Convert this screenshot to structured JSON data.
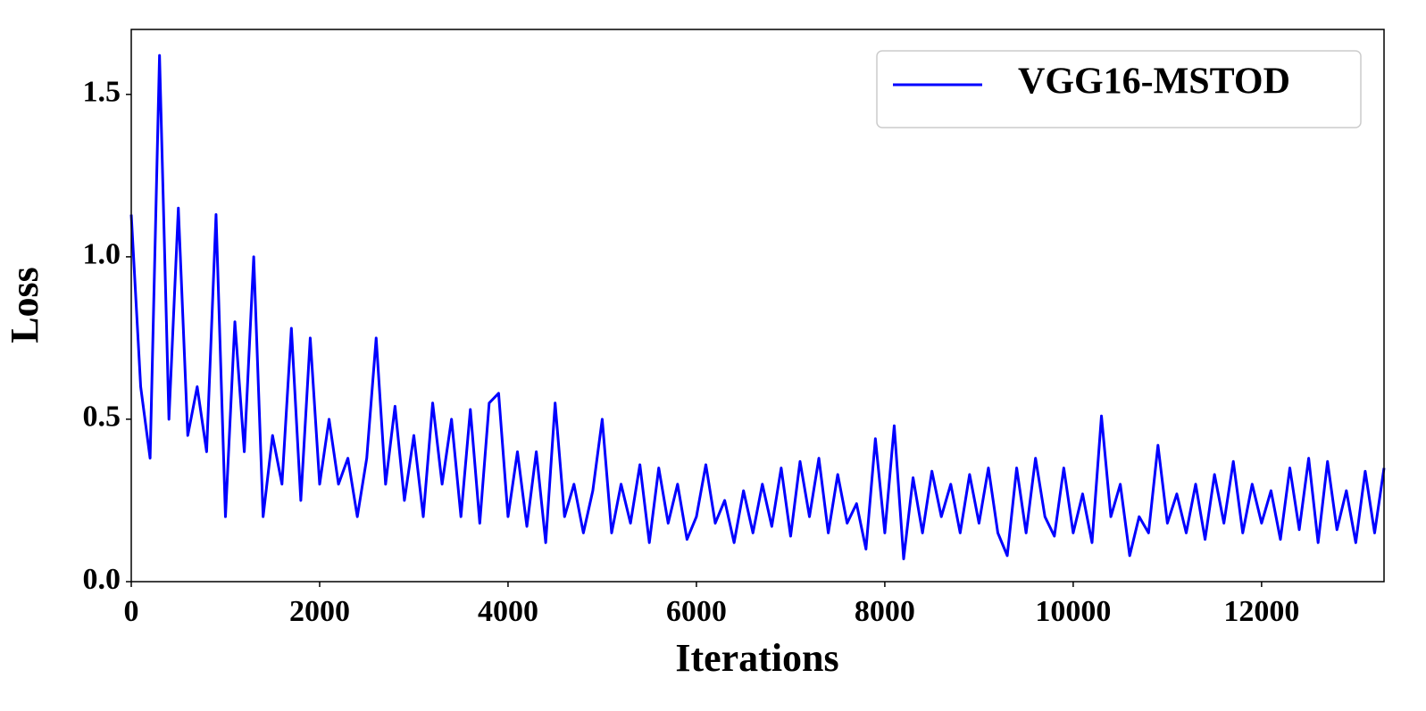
{
  "chart_data": {
    "type": "line",
    "xlabel": "Iterations",
    "ylabel": "Loss",
    "x": [
      0,
      100,
      200,
      300,
      400,
      500,
      600,
      700,
      800,
      900,
      1000,
      1100,
      1200,
      1300,
      1400,
      1500,
      1600,
      1700,
      1800,
      1900,
      2000,
      2100,
      2200,
      2300,
      2400,
      2500,
      2600,
      2700,
      2800,
      2900,
      3000,
      3100,
      3200,
      3300,
      3400,
      3500,
      3600,
      3700,
      3800,
      3900,
      4000,
      4100,
      4200,
      4300,
      4400,
      4500,
      4600,
      4700,
      4800,
      4900,
      5000,
      5100,
      5200,
      5300,
      5400,
      5500,
      5600,
      5700,
      5800,
      5900,
      6000,
      6100,
      6200,
      6300,
      6400,
      6500,
      6600,
      6700,
      6800,
      6900,
      7000,
      7100,
      7200,
      7300,
      7400,
      7500,
      7600,
      7700,
      7800,
      7900,
      8000,
      8100,
      8200,
      8300,
      8400,
      8500,
      8600,
      8700,
      8800,
      8900,
      9000,
      9100,
      9200,
      9300,
      9400,
      9500,
      9600,
      9700,
      9800,
      9900,
      10000,
      10100,
      10200,
      10300,
      10400,
      10500,
      10600,
      10700,
      10800,
      10900,
      11000,
      11100,
      11200,
      11300,
      11400,
      11500,
      11600,
      11700,
      11800,
      11900,
      12000,
      12100,
      12200,
      12300,
      12400,
      12500,
      12600,
      12700,
      12800,
      12900,
      13000,
      13100,
      13200,
      13300
    ],
    "series": [
      {
        "name": "VGG16-MSTOD",
        "color": "#0000ff",
        "values": [
          1.13,
          0.6,
          0.38,
          1.62,
          0.5,
          1.15,
          0.45,
          0.6,
          0.4,
          1.13,
          0.2,
          0.8,
          0.4,
          1.0,
          0.2,
          0.45,
          0.3,
          0.78,
          0.25,
          0.75,
          0.3,
          0.5,
          0.3,
          0.38,
          0.2,
          0.38,
          0.75,
          0.3,
          0.54,
          0.25,
          0.45,
          0.2,
          0.55,
          0.3,
          0.5,
          0.2,
          0.53,
          0.18,
          0.55,
          0.58,
          0.2,
          0.4,
          0.17,
          0.4,
          0.12,
          0.55,
          0.2,
          0.3,
          0.15,
          0.28,
          0.5,
          0.15,
          0.3,
          0.18,
          0.36,
          0.12,
          0.35,
          0.18,
          0.3,
          0.13,
          0.2,
          0.36,
          0.18,
          0.25,
          0.12,
          0.28,
          0.15,
          0.3,
          0.17,
          0.35,
          0.14,
          0.37,
          0.2,
          0.38,
          0.15,
          0.33,
          0.18,
          0.24,
          0.1,
          0.44,
          0.15,
          0.48,
          0.07,
          0.32,
          0.15,
          0.34,
          0.2,
          0.3,
          0.15,
          0.33,
          0.18,
          0.35,
          0.15,
          0.08,
          0.35,
          0.15,
          0.38,
          0.2,
          0.14,
          0.35,
          0.15,
          0.27,
          0.12,
          0.51,
          0.2,
          0.3,
          0.08,
          0.2,
          0.15,
          0.42,
          0.18,
          0.27,
          0.15,
          0.3,
          0.13,
          0.33,
          0.18,
          0.37,
          0.15,
          0.3,
          0.18,
          0.28,
          0.13,
          0.35,
          0.16,
          0.38,
          0.12,
          0.37,
          0.16,
          0.28,
          0.12,
          0.34,
          0.15,
          0.35
        ]
      }
    ],
    "xlim": [
      0,
      13300
    ],
    "ylim": [
      0,
      1.7
    ],
    "xticks": [
      0,
      2000,
      4000,
      6000,
      8000,
      10000,
      12000
    ],
    "yticks": [
      {
        "value": 0,
        "label": "0.0"
      },
      0.5,
      {
        "value": 1,
        "label": "1.0"
      },
      1.5
    ],
    "legend": "upper right"
  }
}
